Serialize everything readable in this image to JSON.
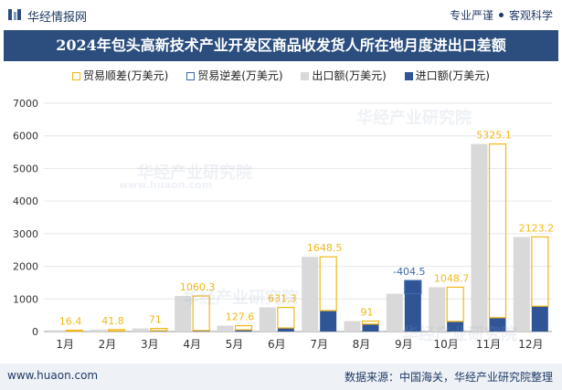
{
  "header": {
    "brand": "华经情报网",
    "tagline_left": "专业严谨",
    "tagline_right": "客观科学"
  },
  "footer": {
    "website": "www.huaon.com",
    "source": "数据来源：中国海关，华经产业研究院整理"
  },
  "watermark": {
    "text": "华经产业研究院",
    "url": "www.huaon.com"
  },
  "colors": {
    "surplus": "#f2b716",
    "deficit": "#3d6aa8",
    "export": "#d9d9d9",
    "import": "#2f5597",
    "title_bg": "#2b4e7e"
  },
  "chart_data": {
    "type": "bar",
    "title": "2024年包头高新技术产业开发区商品收发货人所在地月度进出口差额",
    "categories": [
      "1月",
      "2月",
      "3月",
      "4月",
      "5月",
      "6月",
      "7月",
      "8月",
      "9月",
      "10月",
      "11月",
      "12月"
    ],
    "series": [
      {
        "name": "贸易顺差(万美元)",
        "values": [
          16.4,
          41.8,
          71,
          1060.3,
          127.6,
          631.3,
          1648.5,
          91,
          null,
          1048.7,
          5325.1,
          2123.2
        ]
      },
      {
        "name": "贸易逆差(万美元)",
        "values": [
          null,
          null,
          null,
          null,
          null,
          null,
          null,
          null,
          -404.5,
          null,
          null,
          null
        ]
      },
      {
        "name": "出口额(万美元)",
        "values": [
          40,
          60,
          95,
          1090,
          180,
          740,
          2290,
          320,
          1160,
          1360,
          5750,
          2900
        ]
      },
      {
        "name": "进口额(万美元)",
        "values": [
          24,
          18,
          24,
          30,
          52,
          109,
          642,
          229,
          1565,
          311,
          425,
          777
        ]
      }
    ],
    "labels": [
      "16.4",
      "41.8",
      "71",
      "1060.3",
      "127.6",
      "631.3",
      "1648.5",
      "91",
      "-404.5",
      "1048.7",
      "5325.1",
      "2123.2"
    ],
    "yticks": [
      "0",
      "1000",
      "2000",
      "3000",
      "4000",
      "5000",
      "6000",
      "7000"
    ],
    "ylim": [
      0,
      7000
    ],
    "legend_position": "top",
    "grid": true
  }
}
